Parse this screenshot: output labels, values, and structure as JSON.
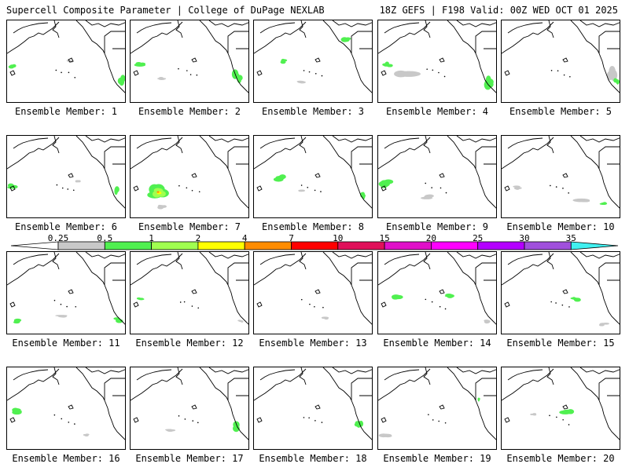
{
  "header": {
    "title": "Supercell Composite Parameter | College of DuPage NEXLAB",
    "run_info": "18Z GEFS | F198 Valid: 00Z WED OCT 01 2025"
  },
  "colors": {
    "light_gray": "#c8c8c8",
    "light_green": "#50f050",
    "yellow_green": "#a0ff50",
    "yellow": "#ffff00",
    "orange": "#ff8c00",
    "red": "#ff0000",
    "cyan": "#40f0f0"
  },
  "colorbar": {
    "ticks": [
      "0.25",
      "0.5",
      "1",
      "2",
      "4",
      "7",
      "10",
      "15",
      "20",
      "25",
      "30",
      "35"
    ],
    "colors": [
      "#c8c8c8",
      "#50f050",
      "#a0ff50",
      "#ffff00",
      "#ff8c00",
      "#ff0000",
      "#e0105a",
      "#e010c8",
      "#ff00ff",
      "#b400ff",
      "#a050dc"
    ]
  },
  "members": [
    {
      "label": "Ensemble Member: 1"
    },
    {
      "label": "Ensemble Member: 2"
    },
    {
      "label": "Ensemble Member: 3"
    },
    {
      "label": "Ensemble Member: 4"
    },
    {
      "label": "Ensemble Member: 5"
    },
    {
      "label": "Ensemble Member: 6"
    },
    {
      "label": "Ensemble Member: 7"
    },
    {
      "label": "Ensemble Member: 8"
    },
    {
      "label": "Ensemble Member: 9"
    },
    {
      "label": "Ensemble Member: 10"
    },
    {
      "label": "Ensemble Member: 11"
    },
    {
      "label": "Ensemble Member: 12"
    },
    {
      "label": "Ensemble Member: 13"
    },
    {
      "label": "Ensemble Member: 14"
    },
    {
      "label": "Ensemble Member: 15"
    },
    {
      "label": "Ensemble Member: 16"
    },
    {
      "label": "Ensemble Member: 17"
    },
    {
      "label": "Ensemble Member: 18"
    },
    {
      "label": "Ensemble Member: 19"
    },
    {
      "label": "Ensemble Member: 20"
    }
  ]
}
